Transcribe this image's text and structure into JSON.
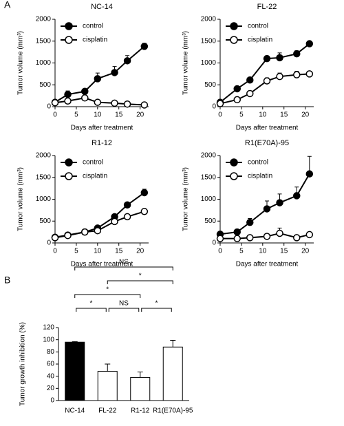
{
  "chart_data": [
    {
      "type": "line",
      "panel": "A",
      "title": "NC-14",
      "x_label": "Days after treatment",
      "y_label": "Tumor volume (mm³)",
      "x": [
        0,
        3,
        7,
        10,
        14,
        17,
        21
      ],
      "xlim": [
        0,
        22
      ],
      "xticks": [
        0,
        5,
        10,
        15,
        20
      ],
      "ylim": [
        0,
        2000
      ],
      "yticks": [
        0,
        500,
        1000,
        1500,
        2000
      ],
      "series": [
        {
          "name": "control",
          "color": "#000000",
          "fill": "#000000",
          "values": [
            100,
            280,
            350,
            640,
            780,
            1050,
            1380
          ],
          "errors": [
            40,
            80,
            40,
            130,
            140,
            120,
            70
          ]
        },
        {
          "name": "cisplatin",
          "color": "#000000",
          "fill": "#ffffff",
          "values": [
            90,
            130,
            200,
            100,
            80,
            60,
            40
          ],
          "errors": [
            20,
            20,
            30,
            20,
            15,
            15,
            10
          ]
        }
      ]
    },
    {
      "type": "line",
      "title": "FL-22",
      "x_label": "Days after treatment",
      "y_label": "Tumor volume (mm³)",
      "x": [
        0,
        4,
        7,
        11,
        14,
        18,
        21
      ],
      "xlim": [
        0,
        22
      ],
      "xticks": [
        0,
        5,
        10,
        15,
        20
      ],
      "ylim": [
        0,
        2000
      ],
      "yticks": [
        0,
        500,
        1000,
        1500,
        2000
      ],
      "series": [
        {
          "name": "control",
          "color": "#000000",
          "fill": "#000000",
          "values": [
            100,
            410,
            610,
            1100,
            1120,
            1210,
            1440
          ],
          "errors": [
            20,
            40,
            40,
            60,
            110,
            70,
            40
          ]
        },
        {
          "name": "cisplatin",
          "color": "#000000",
          "fill": "#ffffff",
          "values": [
            70,
            160,
            300,
            590,
            690,
            730,
            750
          ],
          "errors": [
            10,
            20,
            30,
            70,
            80,
            80,
            50
          ]
        }
      ]
    },
    {
      "type": "line",
      "title": "R1-12",
      "x_label": "Days after treatment",
      "y_label": "Tumor volume (mm³)",
      "x": [
        0,
        3,
        7,
        10,
        14,
        17,
        21
      ],
      "xlim": [
        0,
        22
      ],
      "xticks": [
        0,
        5,
        10,
        15,
        20
      ],
      "ylim": [
        0,
        2000
      ],
      "yticks": [
        0,
        500,
        1000,
        1500,
        2000
      ],
      "series": [
        {
          "name": "control",
          "color": "#000000",
          "fill": "#000000",
          "values": [
            130,
            180,
            250,
            340,
            600,
            870,
            1150
          ],
          "errors": [
            20,
            20,
            20,
            30,
            50,
            60,
            80
          ]
        },
        {
          "name": "cisplatin",
          "color": "#000000",
          "fill": "#ffffff",
          "values": [
            120,
            170,
            250,
            280,
            490,
            600,
            720
          ],
          "errors": [
            20,
            20,
            20,
            20,
            40,
            50,
            40
          ]
        }
      ]
    },
    {
      "type": "line",
      "title": "R1(E70A)-95",
      "x_label": "Days after treatment",
      "y_label": "Tumor volume (mm³)",
      "x": [
        0,
        4,
        7,
        11,
        14,
        18,
        21
      ],
      "xlim": [
        0,
        22
      ],
      "xticks": [
        0,
        5,
        10,
        15,
        20
      ],
      "ylim": [
        0,
        2000
      ],
      "yticks": [
        0,
        500,
        1000,
        1500,
        2000
      ],
      "series": [
        {
          "name": "control",
          "color": "#000000",
          "fill": "#000000",
          "values": [
            200,
            250,
            470,
            780,
            920,
            1080,
            1580
          ],
          "errors": [
            40,
            40,
            90,
            180,
            200,
            200,
            400
          ]
        },
        {
          "name": "cisplatin",
          "color": "#000000",
          "fill": "#ffffff",
          "values": [
            100,
            100,
            120,
            150,
            220,
            120,
            190
          ],
          "errors": [
            20,
            20,
            30,
            40,
            120,
            30,
            40
          ]
        }
      ]
    },
    {
      "type": "bar",
      "panel": "B",
      "y_label": "Tumor growth inhibition (%)",
      "categories": [
        "NC-14",
        "FL-22",
        "R1-12",
        "R1(E70A)-95"
      ],
      "values": [
        96,
        48,
        38,
        88
      ],
      "errors": [
        1,
        12,
        9,
        11
      ],
      "colors": [
        "#000000",
        "#ffffff",
        "#ffffff",
        "#ffffff"
      ],
      "ylim": [
        0,
        120
      ],
      "yticks": [
        0,
        20,
        40,
        60,
        80,
        100,
        120
      ],
      "annotations": [
        {
          "label": "*",
          "between": [
            "NC-14",
            "FL-22"
          ]
        },
        {
          "label": "NS",
          "between": [
            "FL-22",
            "R1-12"
          ]
        },
        {
          "label": "*",
          "between": [
            "R1-12",
            "R1(E70A)-95"
          ]
        },
        {
          "label": "*",
          "between": [
            "NC-14",
            "R1-12"
          ]
        },
        {
          "label": "*",
          "between": [
            "FL-22",
            "R1(E70A)-95"
          ]
        },
        {
          "label": "NS",
          "between": [
            "NC-14",
            "R1(E70A)-95"
          ]
        }
      ]
    }
  ]
}
